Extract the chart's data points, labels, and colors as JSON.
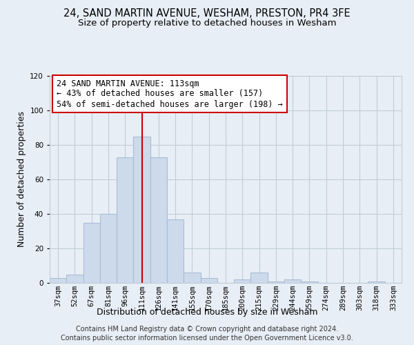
{
  "title": "24, SAND MARTIN AVENUE, WESHAM, PRESTON, PR4 3FE",
  "subtitle": "Size of property relative to detached houses in Wesham",
  "xlabel": "Distribution of detached houses by size in Wesham",
  "ylabel": "Number of detached properties",
  "categories": [
    "37sqm",
    "52sqm",
    "67sqm",
    "81sqm",
    "96sqm",
    "111sqm",
    "126sqm",
    "141sqm",
    "155sqm",
    "170sqm",
    "185sqm",
    "200sqm",
    "215sqm",
    "229sqm",
    "244sqm",
    "259sqm",
    "274sqm",
    "289sqm",
    "303sqm",
    "318sqm",
    "333sqm"
  ],
  "values": [
    3,
    5,
    35,
    40,
    73,
    85,
    73,
    37,
    6,
    3,
    0,
    2,
    6,
    1,
    2,
    1,
    0,
    0,
    0,
    1,
    0
  ],
  "bar_color": "#ccdaec",
  "bar_edge_color": "#aabbd4",
  "vline_x_index": 5,
  "vline_color": "#cc0000",
  "annotation_text": "24 SAND MARTIN AVENUE: 113sqm\n← 43% of detached houses are smaller (157)\n54% of semi-detached houses are larger (198) →",
  "annotation_box_color": "#ffffff",
  "annotation_box_edge": "#cc0000",
  "ylim": [
    0,
    120
  ],
  "yticks": [
    0,
    20,
    40,
    60,
    80,
    100,
    120
  ],
  "footer_line1": "Contains HM Land Registry data © Crown copyright and database right 2024.",
  "footer_line2": "Contains public sector information licensed under the Open Government Licence v3.0.",
  "bg_color": "#e8eef5",
  "plot_bg_color": "#e8eef5",
  "grid_color": "#c0ccd8",
  "title_fontsize": 10.5,
  "subtitle_fontsize": 9.5,
  "axis_label_fontsize": 9,
  "tick_fontsize": 7.5,
  "annotation_fontsize": 8.5,
  "footer_fontsize": 7
}
